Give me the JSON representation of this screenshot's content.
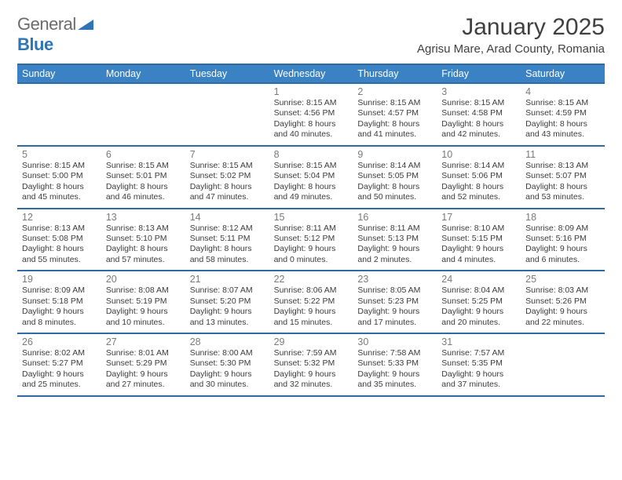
{
  "brand": {
    "part1": "General",
    "part2": "Blue"
  },
  "title": "January 2025",
  "location": "Agrisu Mare, Arad County, Romania",
  "colors": {
    "header_bg": "#3b82c4",
    "header_border": "#2f6aa3",
    "header_text": "#ffffff",
    "body_text": "#3b3b3b",
    "daynum_text": "#7a7a7a",
    "brand_gray": "#6b6b6b",
    "brand_blue": "#2f74b5",
    "background": "#ffffff"
  },
  "layout": {
    "columns": 7,
    "day_fontsize": 10.5,
    "daynum_fontsize": 12.5,
    "header_fontsize": 12.5,
    "title_fontsize": 30,
    "location_fontsize": 15
  },
  "weekdays": [
    "Sunday",
    "Monday",
    "Tuesday",
    "Wednesday",
    "Thursday",
    "Friday",
    "Saturday"
  ],
  "weeks": [
    [
      {
        "num": "",
        "lines": []
      },
      {
        "num": "",
        "lines": []
      },
      {
        "num": "",
        "lines": []
      },
      {
        "num": "1",
        "lines": [
          "Sunrise: 8:15 AM",
          "Sunset: 4:56 PM",
          "Daylight: 8 hours",
          "and 40 minutes."
        ]
      },
      {
        "num": "2",
        "lines": [
          "Sunrise: 8:15 AM",
          "Sunset: 4:57 PM",
          "Daylight: 8 hours",
          "and 41 minutes."
        ]
      },
      {
        "num": "3",
        "lines": [
          "Sunrise: 8:15 AM",
          "Sunset: 4:58 PM",
          "Daylight: 8 hours",
          "and 42 minutes."
        ]
      },
      {
        "num": "4",
        "lines": [
          "Sunrise: 8:15 AM",
          "Sunset: 4:59 PM",
          "Daylight: 8 hours",
          "and 43 minutes."
        ]
      }
    ],
    [
      {
        "num": "5",
        "lines": [
          "Sunrise: 8:15 AM",
          "Sunset: 5:00 PM",
          "Daylight: 8 hours",
          "and 45 minutes."
        ]
      },
      {
        "num": "6",
        "lines": [
          "Sunrise: 8:15 AM",
          "Sunset: 5:01 PM",
          "Daylight: 8 hours",
          "and 46 minutes."
        ]
      },
      {
        "num": "7",
        "lines": [
          "Sunrise: 8:15 AM",
          "Sunset: 5:02 PM",
          "Daylight: 8 hours",
          "and 47 minutes."
        ]
      },
      {
        "num": "8",
        "lines": [
          "Sunrise: 8:15 AM",
          "Sunset: 5:04 PM",
          "Daylight: 8 hours",
          "and 49 minutes."
        ]
      },
      {
        "num": "9",
        "lines": [
          "Sunrise: 8:14 AM",
          "Sunset: 5:05 PM",
          "Daylight: 8 hours",
          "and 50 minutes."
        ]
      },
      {
        "num": "10",
        "lines": [
          "Sunrise: 8:14 AM",
          "Sunset: 5:06 PM",
          "Daylight: 8 hours",
          "and 52 minutes."
        ]
      },
      {
        "num": "11",
        "lines": [
          "Sunrise: 8:13 AM",
          "Sunset: 5:07 PM",
          "Daylight: 8 hours",
          "and 53 minutes."
        ]
      }
    ],
    [
      {
        "num": "12",
        "lines": [
          "Sunrise: 8:13 AM",
          "Sunset: 5:08 PM",
          "Daylight: 8 hours",
          "and 55 minutes."
        ]
      },
      {
        "num": "13",
        "lines": [
          "Sunrise: 8:13 AM",
          "Sunset: 5:10 PM",
          "Daylight: 8 hours",
          "and 57 minutes."
        ]
      },
      {
        "num": "14",
        "lines": [
          "Sunrise: 8:12 AM",
          "Sunset: 5:11 PM",
          "Daylight: 8 hours",
          "and 58 minutes."
        ]
      },
      {
        "num": "15",
        "lines": [
          "Sunrise: 8:11 AM",
          "Sunset: 5:12 PM",
          "Daylight: 9 hours",
          "and 0 minutes."
        ]
      },
      {
        "num": "16",
        "lines": [
          "Sunrise: 8:11 AM",
          "Sunset: 5:13 PM",
          "Daylight: 9 hours",
          "and 2 minutes."
        ]
      },
      {
        "num": "17",
        "lines": [
          "Sunrise: 8:10 AM",
          "Sunset: 5:15 PM",
          "Daylight: 9 hours",
          "and 4 minutes."
        ]
      },
      {
        "num": "18",
        "lines": [
          "Sunrise: 8:09 AM",
          "Sunset: 5:16 PM",
          "Daylight: 9 hours",
          "and 6 minutes."
        ]
      }
    ],
    [
      {
        "num": "19",
        "lines": [
          "Sunrise: 8:09 AM",
          "Sunset: 5:18 PM",
          "Daylight: 9 hours",
          "and 8 minutes."
        ]
      },
      {
        "num": "20",
        "lines": [
          "Sunrise: 8:08 AM",
          "Sunset: 5:19 PM",
          "Daylight: 9 hours",
          "and 10 minutes."
        ]
      },
      {
        "num": "21",
        "lines": [
          "Sunrise: 8:07 AM",
          "Sunset: 5:20 PM",
          "Daylight: 9 hours",
          "and 13 minutes."
        ]
      },
      {
        "num": "22",
        "lines": [
          "Sunrise: 8:06 AM",
          "Sunset: 5:22 PM",
          "Daylight: 9 hours",
          "and 15 minutes."
        ]
      },
      {
        "num": "23",
        "lines": [
          "Sunrise: 8:05 AM",
          "Sunset: 5:23 PM",
          "Daylight: 9 hours",
          "and 17 minutes."
        ]
      },
      {
        "num": "24",
        "lines": [
          "Sunrise: 8:04 AM",
          "Sunset: 5:25 PM",
          "Daylight: 9 hours",
          "and 20 minutes."
        ]
      },
      {
        "num": "25",
        "lines": [
          "Sunrise: 8:03 AM",
          "Sunset: 5:26 PM",
          "Daylight: 9 hours",
          "and 22 minutes."
        ]
      }
    ],
    [
      {
        "num": "26",
        "lines": [
          "Sunrise: 8:02 AM",
          "Sunset: 5:27 PM",
          "Daylight: 9 hours",
          "and 25 minutes."
        ]
      },
      {
        "num": "27",
        "lines": [
          "Sunrise: 8:01 AM",
          "Sunset: 5:29 PM",
          "Daylight: 9 hours",
          "and 27 minutes."
        ]
      },
      {
        "num": "28",
        "lines": [
          "Sunrise: 8:00 AM",
          "Sunset: 5:30 PM",
          "Daylight: 9 hours",
          "and 30 minutes."
        ]
      },
      {
        "num": "29",
        "lines": [
          "Sunrise: 7:59 AM",
          "Sunset: 5:32 PM",
          "Daylight: 9 hours",
          "and 32 minutes."
        ]
      },
      {
        "num": "30",
        "lines": [
          "Sunrise: 7:58 AM",
          "Sunset: 5:33 PM",
          "Daylight: 9 hours",
          "and 35 minutes."
        ]
      },
      {
        "num": "31",
        "lines": [
          "Sunrise: 7:57 AM",
          "Sunset: 5:35 PM",
          "Daylight: 9 hours",
          "and 37 minutes."
        ]
      },
      {
        "num": "",
        "lines": []
      }
    ]
  ]
}
